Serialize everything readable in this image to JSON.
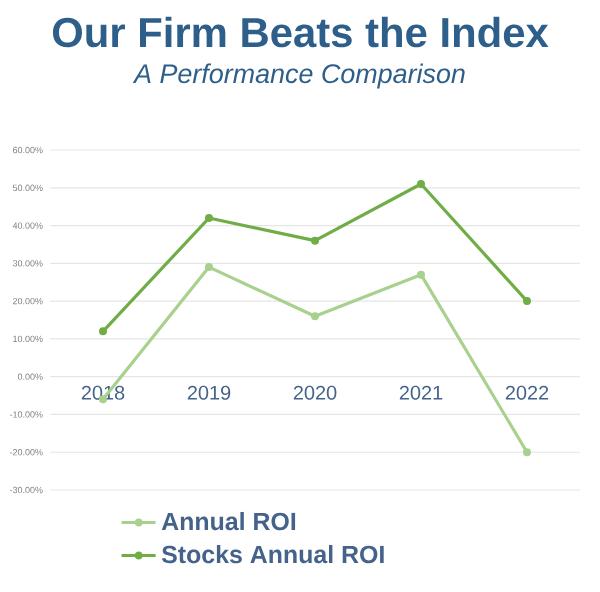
{
  "chart_data": {
    "type": "line",
    "title": "Our Firm Beats the Index",
    "subtitle": "A Performance Comparison",
    "categories": [
      "2018",
      "2019",
      "2020",
      "2021",
      "2022"
    ],
    "series": [
      {
        "name": "Annual ROI",
        "color": "#a9d18e",
        "values": [
          -6,
          29,
          16,
          27,
          -20
        ]
      },
      {
        "name": "Stocks Annual ROI",
        "color": "#70ad47",
        "values": [
          12,
          42,
          36,
          51,
          20
        ]
      }
    ],
    "ylim": [
      -30,
      60
    ],
    "yticks": [
      {
        "value": -30,
        "label": "-30.00%"
      },
      {
        "value": -20,
        "label": "-20.00%"
      },
      {
        "value": -10,
        "label": "-10.00%"
      },
      {
        "value": 0,
        "label": "0.00%"
      },
      {
        "value": 10,
        "label": "10.00%"
      },
      {
        "value": 20,
        "label": "20.00%"
      },
      {
        "value": 30,
        "label": "30.00%"
      },
      {
        "value": 40,
        "label": "40.00%"
      },
      {
        "value": 50,
        "label": "50.00%"
      },
      {
        "value": 60,
        "label": "60.00%"
      }
    ],
    "grid": "y",
    "legend": "bottom",
    "marker": "circle",
    "line_style": "solid"
  }
}
